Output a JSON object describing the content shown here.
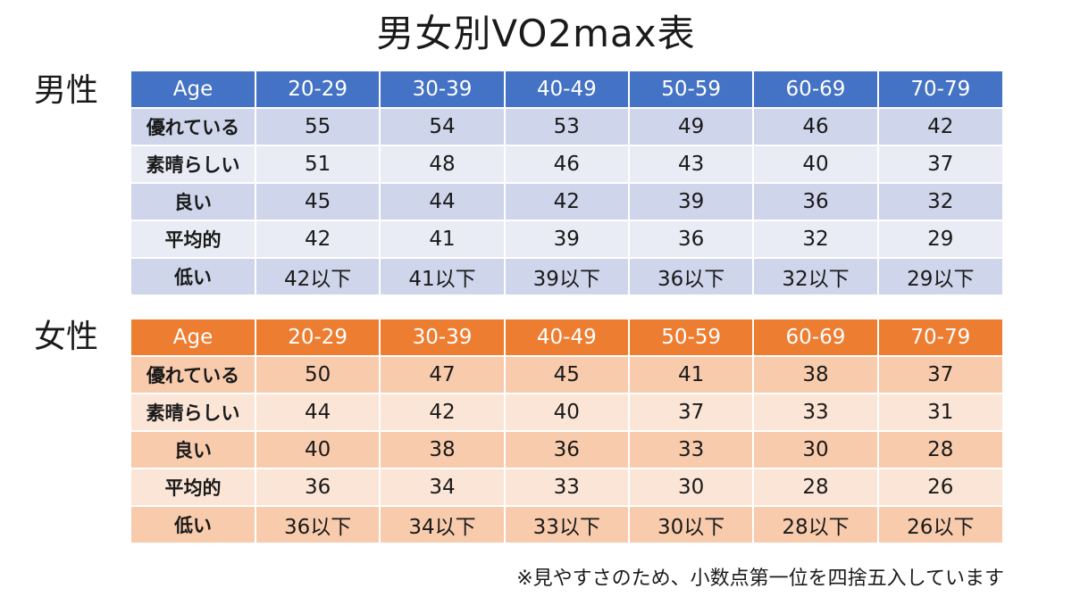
{
  "title": "男女別VO2max表",
  "colors": {
    "male_header": "#4472c4",
    "male_row_dark": "#cfd5ea",
    "male_row_light": "#e9ebf5",
    "female_header": "#ed7d31",
    "female_row_dark": "#f8cbad",
    "female_row_light": "#fbe5d6"
  },
  "male": {
    "label": "男性",
    "headers": [
      "Age",
      "20-29",
      "30-39",
      "40-49",
      "50-59",
      "60-69",
      "70-79"
    ],
    "rows": [
      [
        "優れている",
        "55",
        "54",
        "53",
        "49",
        "46",
        "42"
      ],
      [
        "素晴らしい",
        "51",
        "48",
        "46",
        "43",
        "40",
        "37"
      ],
      [
        "良い",
        "45",
        "44",
        "42",
        "39",
        "36",
        "32"
      ],
      [
        "平均的",
        "42",
        "41",
        "39",
        "36",
        "32",
        "29"
      ],
      [
        "低い",
        "42以下",
        "41以下",
        "39以下",
        "36以下",
        "32以下",
        "29以下"
      ]
    ]
  },
  "female": {
    "label": "女性",
    "headers": [
      "Age",
      "20-29",
      "30-39",
      "40-49",
      "50-59",
      "60-69",
      "70-79"
    ],
    "rows": [
      [
        "優れている",
        "50",
        "47",
        "45",
        "41",
        "38",
        "37"
      ],
      [
        "素晴らしい",
        "44",
        "42",
        "40",
        "37",
        "33",
        "31"
      ],
      [
        "良い",
        "40",
        "38",
        "36",
        "33",
        "30",
        "28"
      ],
      [
        "平均的",
        "36",
        "34",
        "33",
        "30",
        "28",
        "26"
      ],
      [
        "低い",
        "36以下",
        "34以下",
        "33以下",
        "30以下",
        "28以下",
        "26以下"
      ]
    ]
  },
  "footnote": "※見やすさのため、小数点第一位を四捨五入しています"
}
